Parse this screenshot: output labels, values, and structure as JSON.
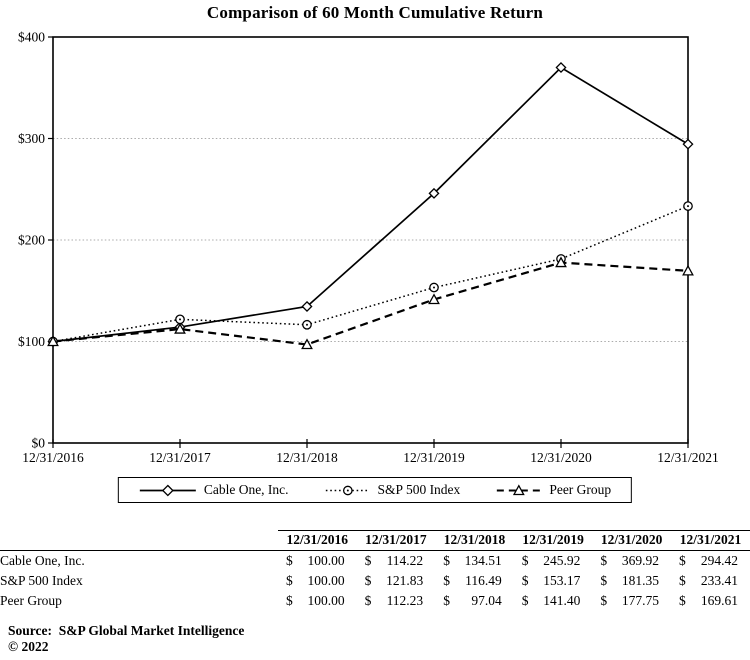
{
  "chart_data": {
    "type": "line",
    "title": "Comparison of 60 Month Cumulative Return",
    "categories": [
      "12/31/2016",
      "12/31/2017",
      "12/31/2018",
      "12/31/2019",
      "12/31/2020",
      "12/31/2021"
    ],
    "series": [
      {
        "name": "Cable One, Inc.",
        "line": "solid",
        "marker": "diamond",
        "values": [
          100.0,
          114.22,
          134.51,
          245.92,
          369.92,
          294.42
        ]
      },
      {
        "name": "S&P 500 Index",
        "line": "dotted",
        "marker": "circle",
        "values": [
          100.0,
          121.83,
          116.49,
          153.17,
          181.35,
          233.41
        ]
      },
      {
        "name": "Peer Group",
        "line": "dashed",
        "marker": "triangle",
        "values": [
          100.0,
          112.23,
          97.04,
          141.4,
          177.75,
          169.61
        ]
      }
    ],
    "xlabel": "",
    "ylabel": "",
    "ylim": [
      0,
      400
    ],
    "y_ticks": [
      {
        "value": 0,
        "label": "$0"
      },
      {
        "value": 100,
        "label": "$100"
      },
      {
        "value": 200,
        "label": "$200"
      },
      {
        "value": 300,
        "label": "$300"
      },
      {
        "value": 400,
        "label": "$400"
      }
    ],
    "grid": "horizontal-dotted",
    "legend_position": "bottom"
  },
  "table": {
    "columns": [
      "12/31/2016",
      "12/31/2017",
      "12/31/2018",
      "12/31/2019",
      "12/31/2020",
      "12/31/2021"
    ],
    "currency_symbol": "$",
    "rows": [
      {
        "label": "Cable One, Inc.",
        "values": [
          "100.00",
          "114.22",
          "134.51",
          "245.92",
          "369.92",
          "294.42"
        ]
      },
      {
        "label": "S&P 500 Index",
        "values": [
          "100.00",
          "121.83",
          "116.49",
          "153.17",
          "181.35",
          "233.41"
        ]
      },
      {
        "label": "Peer Group",
        "values": [
          "100.00",
          "112.23",
          "97.04",
          "141.40",
          "177.75",
          "169.61"
        ]
      }
    ]
  },
  "footer": {
    "source": "Source:  S&P Global Market Intelligence",
    "copyright": "© 2022"
  }
}
